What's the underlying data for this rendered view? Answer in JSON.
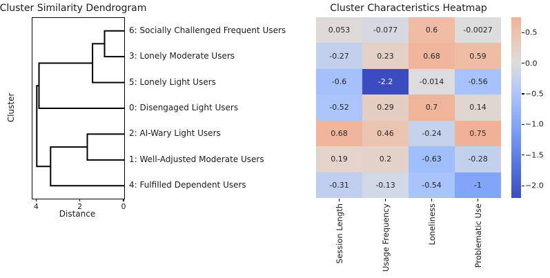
{
  "colors": {
    "background": "#ffffff",
    "line": "#000000",
    "text": "#1a1a1a",
    "annotation_dark": "#262626",
    "annotation_light": "#ffffff",
    "colormap_name": "coolwarm",
    "colormap_anchors": [
      [
        0.0,
        59,
        76,
        192
      ],
      [
        0.125,
        86,
        116,
        227
      ],
      [
        0.25,
        123,
        158,
        248
      ],
      [
        0.375,
        168,
        195,
        253
      ],
      [
        0.5,
        221,
        221,
        221
      ],
      [
        0.625,
        238,
        191,
        168
      ],
      [
        0.75,
        246,
        152,
        122
      ],
      [
        0.875,
        222,
        97,
        77
      ],
      [
        1.0,
        180,
        4,
        38
      ]
    ]
  },
  "chart_data": [
    {
      "type": "dendrogram",
      "title": "Cluster Similarity Dendrogram",
      "xlabel": "Distance",
      "ylabel": "Cluster",
      "orientation": "left",
      "xlim": [
        4.2,
        0
      ],
      "xticks": [
        4,
        2,
        0
      ],
      "xtick_labels": [
        "4",
        "2",
        "0"
      ],
      "leaf_labels": [
        "6: Socially Challenged Frequent Users",
        "3: Lonely Moderate Users",
        "5: Lonely Light Users",
        "0: Disengaged Light Users",
        "2: AI-Wary Light Users",
        "1: Well-Adjusted Moderate Users",
        "4: Fulfilled Dependent Users"
      ],
      "merges": [
        {
          "joins": [
            "6",
            "3"
          ],
          "distance": 0.9
        },
        {
          "joins": [
            "6+3",
            "5"
          ],
          "distance": 1.45
        },
        {
          "joins": [
            "6+3+5",
            "0"
          ],
          "distance": 3.9
        },
        {
          "joins": [
            "2",
            "1"
          ],
          "distance": 1.69
        },
        {
          "joins": [
            "2+1",
            "4"
          ],
          "distance": 3.37
        },
        {
          "joins": [
            "6+3+5+0",
            "2+1+4"
          ],
          "distance": 4.0
        }
      ],
      "links": [
        [
          [
            0,
            0.5
          ],
          [
            0.9,
            0.5
          ],
          [
            0.9,
            1.5
          ],
          [
            0,
            1.5
          ]
        ],
        [
          [
            0.9,
            1.0
          ],
          [
            1.45,
            1.0
          ],
          [
            1.45,
            2.5
          ],
          [
            0,
            2.5
          ]
        ],
        [
          [
            1.45,
            1.75
          ],
          [
            3.9,
            1.75
          ],
          [
            3.9,
            3.5
          ],
          [
            0,
            3.5
          ]
        ],
        [
          [
            0,
            4.5
          ],
          [
            1.69,
            4.5
          ],
          [
            1.69,
            5.5
          ],
          [
            0,
            5.5
          ]
        ],
        [
          [
            1.69,
            5.0
          ],
          [
            3.37,
            5.0
          ],
          [
            3.37,
            6.5
          ],
          [
            0,
            6.5
          ]
        ],
        [
          [
            3.9,
            2.625
          ],
          [
            4.0,
            2.625
          ],
          [
            4.0,
            5.75
          ],
          [
            3.37,
            5.75
          ]
        ]
      ]
    },
    {
      "type": "heatmap",
      "title": "Cluster Characteristics Heatmap",
      "rows": [
        "6: Socially Challenged Frequent Users",
        "3: Lonely Moderate Users",
        "5: Lonely Light Users",
        "0: Disengaged Light Users",
        "2: AI-Wary Light Users",
        "1: Well-Adjusted Moderate Users",
        "4: Fulfilled Dependent Users"
      ],
      "columns": [
        "Session Length",
        "Usage Frequency",
        "Loneliness",
        "Problematic Use"
      ],
      "values": [
        [
          0.053,
          -0.077,
          0.6,
          -0.0027
        ],
        [
          -0.27,
          0.23,
          0.68,
          0.59
        ],
        [
          -0.6,
          -2.2,
          -0.014,
          -0.56
        ],
        [
          -0.52,
          0.29,
          0.7,
          0.14
        ],
        [
          0.68,
          0.46,
          -0.24,
          0.75
        ],
        [
          0.19,
          0.2,
          -0.63,
          -0.28
        ],
        [
          -0.31,
          -0.13,
          -0.54,
          -1
        ]
      ],
      "value_labels": [
        [
          "0.053",
          "-0.077",
          "0.6",
          "-0.0027"
        ],
        [
          "-0.27",
          "0.23",
          "0.68",
          "0.59"
        ],
        [
          "-0.6",
          "-2.2",
          "-0.014",
          "-0.56"
        ],
        [
          "-0.52",
          "0.29",
          "0.7",
          "0.14"
        ],
        [
          "0.68",
          "0.46",
          "-0.24",
          "0.75"
        ],
        [
          "0.19",
          "0.2",
          "-0.63",
          "-0.28"
        ],
        [
          "-0.31",
          "-0.13",
          "-0.54",
          "-1"
        ]
      ],
      "norm": {
        "center": 0,
        "halfspan": 2.2,
        "vmin": -2.2,
        "vmax": 0.75
      },
      "colorbar": {
        "position": "right",
        "tick_values": [
          0.5,
          0.0,
          -0.5,
          -1.0,
          -1.5,
          -2.0
        ],
        "tick_labels": [
          "0.5",
          "0.0",
          "−0.5",
          "−1.0",
          "−1.5",
          "−2.0"
        ]
      }
    }
  ]
}
